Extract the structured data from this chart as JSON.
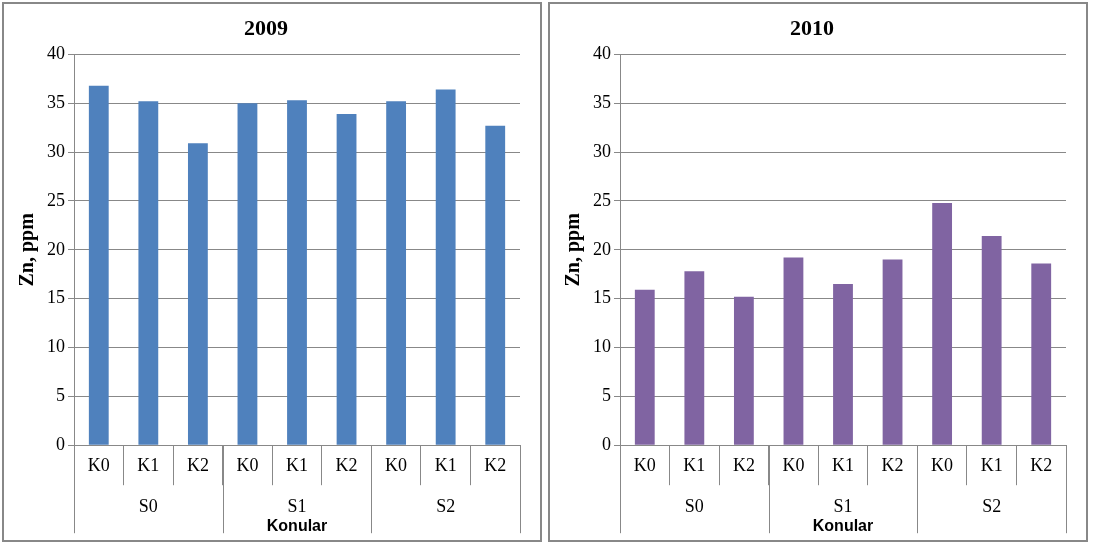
{
  "chart_data": [
    {
      "type": "bar",
      "title": "2009",
      "xlabel": "Konular",
      "ylabel": "Zn, ppm",
      "categories": [
        "K0",
        "K1",
        "K2",
        "K0",
        "K1",
        "K2",
        "K0",
        "K1",
        "K2"
      ],
      "values": [
        36.8,
        35.2,
        30.9,
        35.0,
        35.3,
        33.9,
        35.2,
        36.4,
        32.7
      ],
      "color": "#4f81bd",
      "ylim": [
        0,
        40
      ],
      "yticks": [
        0,
        5,
        10,
        15,
        20,
        25,
        30,
        35,
        40
      ],
      "grid": "y",
      "legend": false,
      "annotations": [
        "S0",
        "S1",
        "S2"
      ]
    },
    {
      "type": "bar",
      "title": "2010",
      "xlabel": "Konular",
      "ylabel": "Zn, ppm",
      "categories": [
        "K0",
        "K1",
        "K2",
        "K0",
        "K1",
        "K2",
        "K0",
        "K1",
        "K2"
      ],
      "values": [
        15.9,
        17.8,
        15.2,
        19.2,
        16.5,
        19.0,
        24.8,
        21.4,
        18.6
      ],
      "color": "#8064a2",
      "ylim": [
        0,
        40
      ],
      "yticks": [
        0,
        5,
        10,
        15,
        20,
        25,
        30,
        35,
        40
      ],
      "grid": "y",
      "legend": false,
      "annotations": [
        "S0",
        "S1",
        "S2"
      ]
    }
  ]
}
